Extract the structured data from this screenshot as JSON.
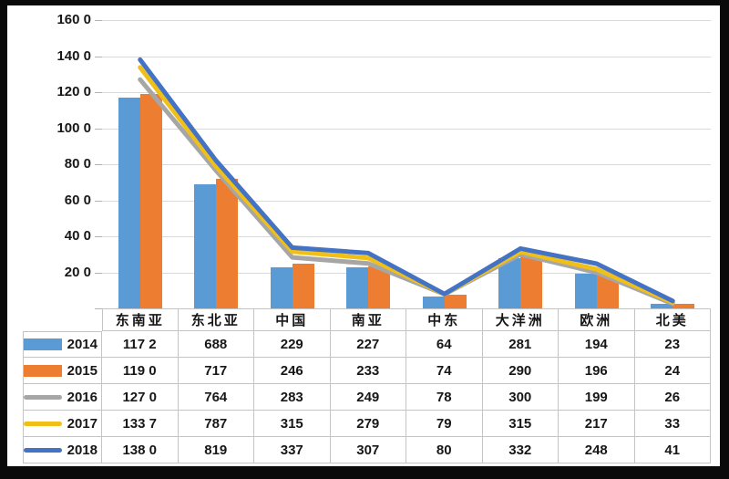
{
  "chart_data": {
    "type": "combo-bar-line",
    "title": "",
    "xlabel": "",
    "ylabel": "",
    "grid": true,
    "legend_position": "table-left",
    "categories": [
      "东南亚",
      "东北亚",
      "中国",
      "南亚",
      "中东",
      "大洋洲",
      "欧洲",
      "北美"
    ],
    "y_axis": {
      "min": 0,
      "max": 1600,
      "step": 200,
      "tick_values": [
        1600,
        1400,
        1200,
        1000,
        800,
        600,
        400,
        200
      ],
      "tick_labels": [
        "160 0",
        "140 0",
        "120 0",
        "100 0",
        "80 0",
        "60 0",
        "40 0",
        "20 0"
      ]
    },
    "series": [
      {
        "name": "2014",
        "type": "bar",
        "color": "#5b9bd5",
        "values": [
          1172,
          688,
          229,
          227,
          64,
          281,
          194,
          23
        ],
        "display": [
          "117 2",
          "688",
          "229",
          "227",
          "64",
          "281",
          "194",
          "23"
        ]
      },
      {
        "name": "2015",
        "type": "bar",
        "color": "#ed7d31",
        "values": [
          1190,
          717,
          246,
          233,
          74,
          290,
          196,
          24
        ],
        "display": [
          "119 0",
          "717",
          "246",
          "233",
          "74",
          "290",
          "196",
          "24"
        ]
      },
      {
        "name": "2016",
        "type": "line",
        "color": "#a6a6a6",
        "values": [
          1270,
          764,
          283,
          249,
          78,
          300,
          199,
          26
        ],
        "display": [
          "127 0",
          "764",
          "283",
          "249",
          "78",
          "300",
          "199",
          "26"
        ]
      },
      {
        "name": "2017",
        "type": "line",
        "color": "#f0c018",
        "values": [
          1337,
          787,
          315,
          279,
          79,
          315,
          217,
          33
        ],
        "display": [
          "133 7",
          "787",
          "315",
          "279",
          "79",
          "315",
          "217",
          "33"
        ]
      },
      {
        "name": "2018",
        "type": "line",
        "color": "#4472c4",
        "values": [
          1380,
          819,
          337,
          307,
          80,
          332,
          248,
          41
        ],
        "display": [
          "138 0",
          "819",
          "337",
          "307",
          "80",
          "332",
          "248",
          "41"
        ]
      }
    ]
  },
  "colors": {
    "frame": "#0a0a0a",
    "background": "#ffffff",
    "gridline": "#d9d9d9",
    "table_border": "#c4c4c4",
    "text": "#171717"
  }
}
